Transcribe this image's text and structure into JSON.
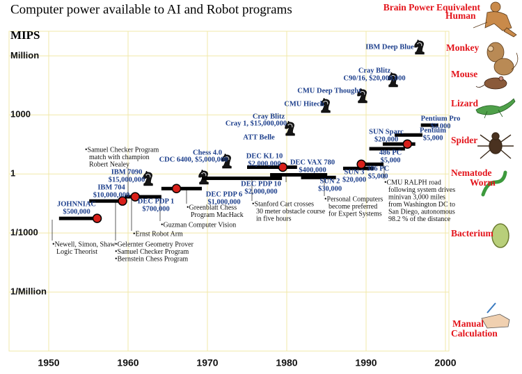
{
  "chart_data": {
    "type": "timeline",
    "title": "Computer power available to AI and Robot programs",
    "y_label": "MIPS",
    "log_y": true,
    "grid": true,
    "grid_color": "#f1e8a8",
    "xlim": [
      1945,
      2000
    ],
    "ylim": [
      1e-09,
      10000000
    ],
    "xticks": [
      1950,
      1960,
      1970,
      1980,
      1990,
      2000
    ],
    "yticks": [
      {
        "value": 1e-06,
        "label": "1/Million"
      },
      {
        "value": 0.001,
        "label": "1/1000"
      },
      1,
      1000,
      {
        "value": 1000000,
        "label": "Million"
      }
    ],
    "bars": {
      "color": "#000000",
      "spans": [
        {
          "x": [
            1951.3,
            1956.1
          ],
          "mips": 0.0055
        },
        {
          "x": [
            1955.1,
            1959.6
          ],
          "mips": 0.042
        },
        {
          "x": [
            1959.6,
            1964.2
          ],
          "mips": 0.069
        },
        {
          "x": [
            1964.2,
            1969.3
          ],
          "mips": 0.18
        },
        {
          "x": [
            1969.3,
            1979.4
          ],
          "mips": 0.6
        },
        {
          "x": [
            1975.0,
            1981.3
          ],
          "mips": 2.2
        },
        {
          "x": [
            1977.9,
            1985.1
          ],
          "mips": 0.9
        },
        {
          "x": [
            1981.8,
            1986.2
          ],
          "mips": 0.66
        },
        {
          "x": [
            1987.1,
            1991.0
          ],
          "mips": 1.9
        },
        {
          "x": [
            1988.9,
            1992.2
          ],
          "mips": 3.1
        },
        {
          "x": [
            1990.4,
            1994.9
          ],
          "mips": 19
        },
        {
          "x": [
            1992.1,
            1996.2
          ],
          "mips": 33
        },
        {
          "x": [
            1993.6,
            1997.1
          ],
          "mips": 95
        },
        {
          "x": [
            1996.9,
            1999.1
          ],
          "mips": 300
        }
      ]
    },
    "dots": {
      "color": "#d8201a",
      "points": [
        {
          "x": 1956.1,
          "mips": 0.0055
        },
        {
          "x": 1959.3,
          "mips": 0.042
        },
        {
          "x": 1960.9,
          "mips": 0.069
        },
        {
          "x": 1966.1,
          "mips": 0.18
        },
        {
          "x": 1979.5,
          "mips": 2.2
        },
        {
          "x": 1989.4,
          "mips": 3.1
        },
        {
          "x": 1995.2,
          "mips": 33
        }
      ]
    },
    "machine_labels": [
      [
        "JOHNNIAC",
        "$500,000"
      ],
      [
        "IBM 704",
        "$10,000,000"
      ],
      [
        "IBM 7090",
        "$15,000,000"
      ],
      [
        "DEC PDP 1",
        "$700,000"
      ],
      [
        "Chess 4.0"
      ],
      [
        "CDC 6400, $5,000,000"
      ],
      [
        "DEC PDP  6",
        "$1,000,000"
      ],
      [
        "DEC PDP  10",
        "$2,000,000"
      ],
      [
        "DEC KL 10",
        "$2,000,000"
      ],
      [
        "DEC VAX 780",
        "$400,000"
      ],
      [
        "SUN 2",
        "$30,000"
      ],
      [
        "SUN 3",
        "$20,000"
      ],
      [
        "386 PC",
        "$5,000"
      ],
      [
        "486 PC",
        "$5,000"
      ],
      [
        "SUN Sparc",
        "$20,000"
      ],
      [
        "Pentium",
        "$5,000"
      ],
      [
        "Pentium Pro",
        "$5,000"
      ],
      [
        "Cray Blitz"
      ],
      [
        "Cray 1, $15,000,000"
      ],
      [
        "ATT  Belle"
      ],
      [
        "CMU Hitech"
      ],
      [
        "CMU Deep Thought"
      ],
      [
        "Cray Blitz",
        "C90/16, $20,000,000"
      ],
      [
        "IBM Deep Blue"
      ]
    ],
    "annotations": [
      [
        "•Samuel Checker Program",
        "match with champion",
        "Robert Nealey"
      ],
      [
        "•Newell, Simon, Shaw",
        "Logic Theorist"
      ],
      [
        "•Gelernter Geometry Prover",
        "•Samuel Checker Program",
        "•Bernstein Chess Program"
      ],
      [
        "•Ernst Robot Arm"
      ],
      [
        "•Guzman Computer Vision"
      ],
      [
        "•Greenblatt  Chess",
        "Program MacHack"
      ],
      [
        "•Stanford Cart crosses",
        "30 meter obstacle course",
        "in five hours"
      ],
      [
        "•Personal Computers",
        "become preferred",
        "for Expert Systems"
      ],
      [
        "•CMU RALPH road",
        "following system drives",
        "minivan 3,000 miles",
        "from Washington DC to",
        "San Diego, autonomous",
        "98.2 % of the distance"
      ]
    ],
    "brain_power": {
      "title": "Brain Power Equivalent",
      "levels": [
        [
          "Human"
        ],
        [
          "Monkey"
        ],
        [
          "Mouse"
        ],
        [
          "Lizard"
        ],
        [
          "Spider"
        ],
        [
          "Nematode",
          "Worm"
        ],
        [
          "Bacterium"
        ],
        [
          "Manual",
          "Calculation"
        ]
      ]
    }
  }
}
